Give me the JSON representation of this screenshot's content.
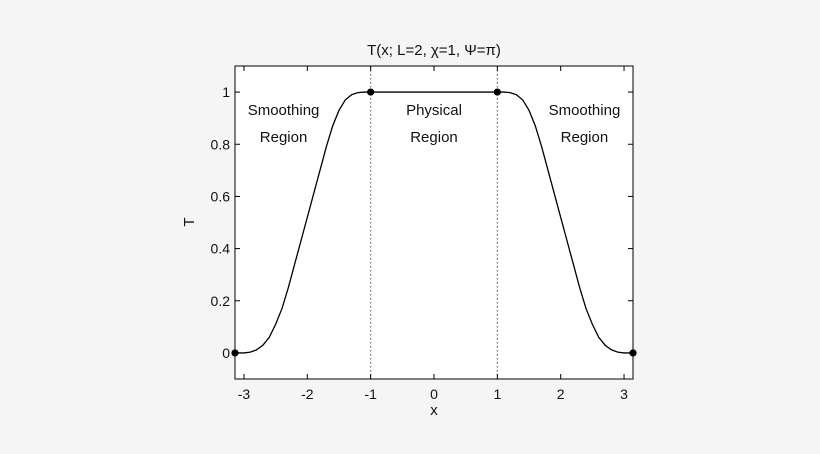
{
  "chart_data": {
    "type": "line",
    "title": "T(x; L=2, χ=1, Ψ=π)",
    "xlabel": "x",
    "ylabel": "T",
    "xlim": [
      -3.14159,
      3.14159
    ],
    "ylim": [
      -0.1,
      1.1
    ],
    "x_ticks": [
      -3,
      -2,
      -1,
      0,
      1,
      2,
      3
    ],
    "x_tick_labels": [
      "-3",
      "-2",
      "-1",
      "0",
      "1",
      "2",
      "3"
    ],
    "y_ticks": [
      0,
      0.2,
      0.4,
      0.6,
      0.8,
      1
    ],
    "y_tick_labels": [
      "0",
      "0.2",
      "0.4",
      "0.6",
      "0.8",
      "1"
    ],
    "grid": false,
    "series": [
      {
        "color": "#000000",
        "x": [
          -3.1416,
          -3.0,
          -2.9,
          -2.8,
          -2.7,
          -2.6,
          -2.5,
          -2.4,
          -2.3,
          -2.2,
          -2.1,
          -2.0,
          -1.9,
          -1.8,
          -1.7,
          -1.6,
          -1.5,
          -1.4,
          -1.3,
          -1.2,
          -1.1,
          -1.0,
          0.0,
          1.0,
          1.1,
          1.2,
          1.3,
          1.4,
          1.5,
          1.6,
          1.7,
          1.8,
          1.9,
          2.0,
          2.1,
          2.2,
          2.3,
          2.4,
          2.5,
          2.6,
          2.7,
          2.8,
          2.9,
          3.0,
          3.1416
        ],
        "y": [
          0.0,
          0.0,
          0.003,
          0.012,
          0.03,
          0.06,
          0.11,
          0.17,
          0.25,
          0.34,
          0.43,
          0.52,
          0.61,
          0.7,
          0.79,
          0.87,
          0.93,
          0.97,
          0.99,
          0.998,
          1.0,
          1.0,
          1.0,
          1.0,
          1.0,
          0.998,
          0.99,
          0.97,
          0.93,
          0.87,
          0.79,
          0.7,
          0.61,
          0.52,
          0.43,
          0.34,
          0.25,
          0.17,
          0.11,
          0.06,
          0.03,
          0.012,
          0.003,
          0.0,
          0.0
        ]
      }
    ],
    "markers": {
      "color": "#000000",
      "x": [
        -3.1416,
        -1.0,
        1.0,
        3.1416
      ],
      "y": [
        0.0,
        1.0,
        1.0,
        0.0
      ]
    },
    "vlines": {
      "style": "dotted",
      "x": [
        -1,
        1
      ]
    },
    "annotations": [
      {
        "line1": "Smoothing",
        "line2": "Region",
        "x": -2.375,
        "y": 0.9
      },
      {
        "line1": "Physical",
        "line2": "Region",
        "x": 0.0,
        "y": 0.9
      },
      {
        "line1": "Smoothing",
        "line2": "Region",
        "x": 2.375,
        "y": 0.9
      }
    ]
  }
}
